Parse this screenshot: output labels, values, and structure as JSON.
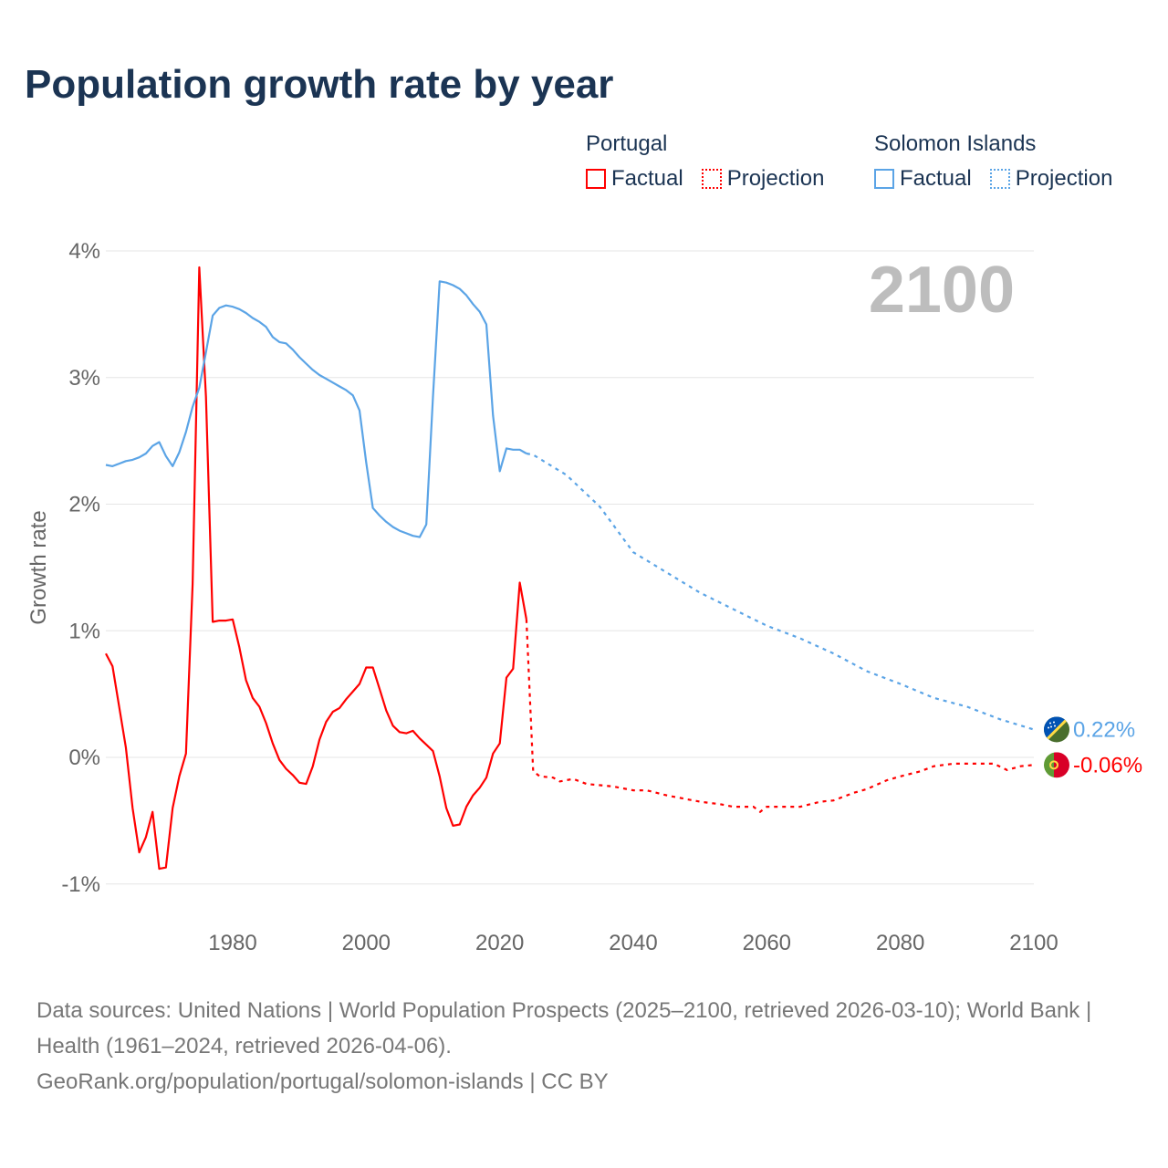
{
  "title": "Population growth rate by year",
  "legend": {
    "groups": [
      {
        "name": "Portugal",
        "color": "#ff0000",
        "factual": "Factual",
        "projection": "Projection"
      },
      {
        "name": "Solomon Islands",
        "color": "#5ba4e6",
        "factual": "Factual",
        "projection": "Projection"
      }
    ]
  },
  "year_label": "2100",
  "footer": {
    "line1": "Data sources: United Nations | World Population Prospects (2025–2100, retrieved 2026-03-10); World Bank | Health (1961–2024, retrieved 2026-04-06).",
    "line2": "GeoRank.org/population/portugal/solomon-islands | CC BY"
  },
  "chart_data": {
    "type": "line",
    "title": "Population growth rate by year",
    "ylabel": "Growth rate",
    "xlabel": "",
    "xlim": [
      1961,
      2100
    ],
    "ylim": [
      -1.3,
      4
    ],
    "yticks": [
      {
        "v": 4,
        "label": "4%"
      },
      {
        "v": 3,
        "label": "3%"
      },
      {
        "v": 2,
        "label": "2%"
      },
      {
        "v": 1,
        "label": "1%"
      },
      {
        "v": 0,
        "label": "0%"
      },
      {
        "v": -1,
        "label": "-1%"
      }
    ],
    "xticks": [
      {
        "v": 1980,
        "label": "1980"
      },
      {
        "v": 2000,
        "label": "2000"
      },
      {
        "v": 2020,
        "label": "2020"
      },
      {
        "v": 2040,
        "label": "2040"
      },
      {
        "v": 2060,
        "label": "2060"
      },
      {
        "v": 2080,
        "label": "2080"
      },
      {
        "v": 2100,
        "label": "2100"
      }
    ],
    "grid": true,
    "series": [
      {
        "name": "Portugal",
        "color": "#ff0000",
        "end_label": "-0.06%",
        "factual": [
          [
            1961,
            0.82
          ],
          [
            1962,
            0.72
          ],
          [
            1963,
            0.4
          ],
          [
            1964,
            0.08
          ],
          [
            1965,
            -0.4
          ],
          [
            1966,
            -0.75
          ],
          [
            1967,
            -0.63
          ],
          [
            1968,
            -0.43
          ],
          [
            1969,
            -0.88
          ],
          [
            1970,
            -0.87
          ],
          [
            1971,
            -0.4
          ],
          [
            1972,
            -0.15
          ],
          [
            1973,
            0.03
          ],
          [
            1974,
            1.37
          ],
          [
            1975,
            3.87
          ],
          [
            1976,
            2.85
          ],
          [
            1977,
            1.07
          ],
          [
            1978,
            1.08
          ],
          [
            1979,
            1.08
          ],
          [
            1980,
            1.09
          ],
          [
            1981,
            0.87
          ],
          [
            1982,
            0.61
          ],
          [
            1983,
            0.47
          ],
          [
            1984,
            0.4
          ],
          [
            1985,
            0.27
          ],
          [
            1986,
            0.11
          ],
          [
            1987,
            -0.02
          ],
          [
            1988,
            -0.09
          ],
          [
            1989,
            -0.14
          ],
          [
            1990,
            -0.2
          ],
          [
            1991,
            -0.21
          ],
          [
            1992,
            -0.07
          ],
          [
            1993,
            0.14
          ],
          [
            1994,
            0.28
          ],
          [
            1995,
            0.36
          ],
          [
            1996,
            0.39
          ],
          [
            1997,
            0.46
          ],
          [
            1998,
            0.52
          ],
          [
            1999,
            0.58
          ],
          [
            2000,
            0.71
          ],
          [
            2001,
            0.71
          ],
          [
            2002,
            0.54
          ],
          [
            2003,
            0.37
          ],
          [
            2004,
            0.25
          ],
          [
            2005,
            0.2
          ],
          [
            2006,
            0.19
          ],
          [
            2007,
            0.21
          ],
          [
            2008,
            0.15
          ],
          [
            2009,
            0.1
          ],
          [
            2010,
            0.05
          ],
          [
            2011,
            -0.15
          ],
          [
            2012,
            -0.4
          ],
          [
            2013,
            -0.54
          ],
          [
            2014,
            -0.53
          ],
          [
            2015,
            -0.39
          ],
          [
            2016,
            -0.3
          ],
          [
            2017,
            -0.24
          ],
          [
            2018,
            -0.16
          ],
          [
            2019,
            0.03
          ],
          [
            2020,
            0.11
          ],
          [
            2021,
            0.63
          ],
          [
            2022,
            0.7
          ],
          [
            2023,
            1.38
          ],
          [
            2024,
            1.09
          ]
        ],
        "projection": [
          [
            2024,
            1.09
          ],
          [
            2025,
            -0.11
          ],
          [
            2026,
            -0.15
          ],
          [
            2028,
            -0.16
          ],
          [
            2029,
            -0.19
          ],
          [
            2031,
            -0.17
          ],
          [
            2033,
            -0.21
          ],
          [
            2037,
            -0.23
          ],
          [
            2040,
            -0.26
          ],
          [
            2042,
            -0.26
          ],
          [
            2045,
            -0.3
          ],
          [
            2048,
            -0.33
          ],
          [
            2050,
            -0.35
          ],
          [
            2053,
            -0.37
          ],
          [
            2055,
            -0.39
          ],
          [
            2058,
            -0.39
          ],
          [
            2059,
            -0.43
          ],
          [
            2060,
            -0.39
          ],
          [
            2065,
            -0.39
          ],
          [
            2068,
            -0.35
          ],
          [
            2070,
            -0.34
          ],
          [
            2073,
            -0.28
          ],
          [
            2075,
            -0.25
          ],
          [
            2078,
            -0.18
          ],
          [
            2080,
            -0.15
          ],
          [
            2083,
            -0.11
          ],
          [
            2085,
            -0.07
          ],
          [
            2088,
            -0.05
          ],
          [
            2092,
            -0.05
          ],
          [
            2094,
            -0.05
          ],
          [
            2096,
            -0.1
          ],
          [
            2098,
            -0.07
          ],
          [
            2100,
            -0.06
          ]
        ]
      },
      {
        "name": "Solomon Islands",
        "color": "#5ba4e6",
        "end_label": "0.22%",
        "factual": [
          [
            1961,
            2.31
          ],
          [
            1962,
            2.3
          ],
          [
            1963,
            2.32
          ],
          [
            1964,
            2.34
          ],
          [
            1965,
            2.35
          ],
          [
            1966,
            2.37
          ],
          [
            1967,
            2.4
          ],
          [
            1968,
            2.46
          ],
          [
            1969,
            2.49
          ],
          [
            1970,
            2.38
          ],
          [
            1971,
            2.3
          ],
          [
            1972,
            2.41
          ],
          [
            1973,
            2.57
          ],
          [
            1974,
            2.77
          ],
          [
            1975,
            2.92
          ],
          [
            1976,
            3.2
          ],
          [
            1977,
            3.49
          ],
          [
            1978,
            3.55
          ],
          [
            1979,
            3.57
          ],
          [
            1980,
            3.56
          ],
          [
            1981,
            3.54
          ],
          [
            1982,
            3.51
          ],
          [
            1983,
            3.47
          ],
          [
            1984,
            3.44
          ],
          [
            1985,
            3.4
          ],
          [
            1986,
            3.32
          ],
          [
            1987,
            3.28
          ],
          [
            1988,
            3.27
          ],
          [
            1989,
            3.22
          ],
          [
            1990,
            3.16
          ],
          [
            1991,
            3.11
          ],
          [
            1992,
            3.06
          ],
          [
            1993,
            3.02
          ],
          [
            1994,
            2.99
          ],
          [
            1995,
            2.96
          ],
          [
            1996,
            2.93
          ],
          [
            1997,
            2.9
          ],
          [
            1998,
            2.86
          ],
          [
            1999,
            2.74
          ],
          [
            2000,
            2.33
          ],
          [
            2001,
            1.97
          ],
          [
            2002,
            1.91
          ],
          [
            2003,
            1.86
          ],
          [
            2004,
            1.82
          ],
          [
            2005,
            1.79
          ],
          [
            2006,
            1.77
          ],
          [
            2007,
            1.75
          ],
          [
            2008,
            1.74
          ],
          [
            2009,
            1.84
          ],
          [
            2010,
            2.85
          ],
          [
            2011,
            3.76
          ],
          [
            2012,
            3.75
          ],
          [
            2013,
            3.73
          ],
          [
            2014,
            3.7
          ],
          [
            2015,
            3.65
          ],
          [
            2016,
            3.58
          ],
          [
            2017,
            3.52
          ],
          [
            2018,
            3.42
          ],
          [
            2019,
            2.7
          ],
          [
            2020,
            2.26
          ],
          [
            2021,
            2.44
          ],
          [
            2022,
            2.43
          ],
          [
            2023,
            2.43
          ],
          [
            2024,
            2.4
          ]
        ],
        "projection": [
          [
            2024,
            2.4
          ],
          [
            2025,
            2.39
          ],
          [
            2030,
            2.23
          ],
          [
            2035,
            1.98
          ],
          [
            2040,
            1.62
          ],
          [
            2045,
            1.46
          ],
          [
            2050,
            1.3
          ],
          [
            2055,
            1.17
          ],
          [
            2060,
            1.04
          ],
          [
            2065,
            0.94
          ],
          [
            2070,
            0.82
          ],
          [
            2075,
            0.68
          ],
          [
            2080,
            0.58
          ],
          [
            2085,
            0.47
          ],
          [
            2090,
            0.4
          ],
          [
            2095,
            0.3
          ],
          [
            2100,
            0.22
          ]
        ]
      }
    ]
  }
}
